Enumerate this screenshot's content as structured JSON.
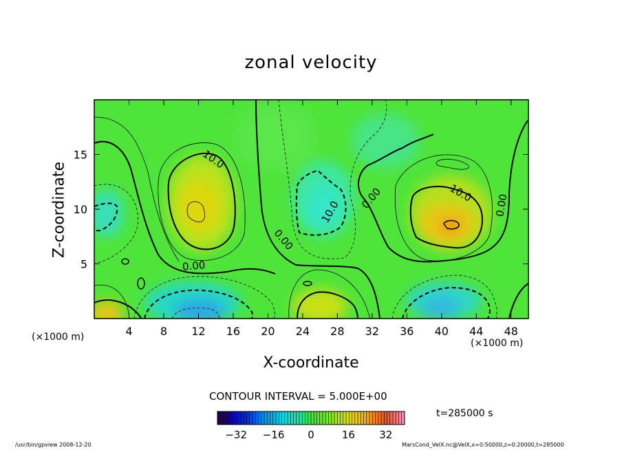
{
  "chart_data": {
    "type": "heatmap",
    "title": "zonal velocity",
    "xlabel": "X-coordinate",
    "ylabel": "Z-coordinate",
    "x_unit_left": "(×1000 m)",
    "x_unit_right": "(×1000 m)",
    "xlim": [
      0,
      50
    ],
    "ylim": [
      0,
      20
    ],
    "x_ticks": [
      4,
      8,
      12,
      16,
      20,
      24,
      28,
      32,
      36,
      40,
      44,
      48
    ],
    "y_ticks": [
      5,
      10,
      15
    ],
    "contour_interval_text": "CONTOUR INTERVAL = 5.000E+00",
    "contour_labels": [
      {
        "text": "10.0",
        "x": 13.5,
        "z": 14.3,
        "angle": 35
      },
      {
        "text": "10.0",
        "x": 27.5,
        "z": 9.6,
        "angle": -60
      },
      {
        "text": "10.0",
        "x": 42.0,
        "z": 11.2,
        "angle": 30
      },
      {
        "text": "0.00",
        "x": 21.5,
        "z": 7.0,
        "angle": 50
      },
      {
        "text": "0.00",
        "x": 11.5,
        "z": 4.5,
        "angle": -5
      },
      {
        "text": "0.00",
        "x": 32.2,
        "z": 10.8,
        "angle": -50
      },
      {
        "text": "0.00",
        "x": 47.3,
        "z": 10.3,
        "angle": -80
      }
    ],
    "colorbar": {
      "range": [
        -40,
        40
      ],
      "ticks": [
        -32,
        -16,
        0,
        16,
        32
      ]
    },
    "grid": false
  },
  "time_label": "t=285000 s",
  "footer_left": "/usr/bin/gpview   2008-12-20",
  "footer_right": "MarsCond_VelX.nc@VelX,x=0:50000,z=0:20000,t=285000"
}
